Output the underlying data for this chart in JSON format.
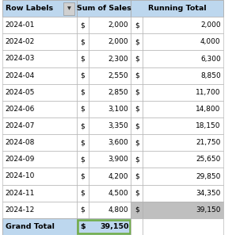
{
  "headers": [
    "Row Labels",
    "Sum of Sales",
    "Running Total"
  ],
  "rows": [
    [
      "2024-01",
      "$",
      "2,000",
      "$",
      "2,000"
    ],
    [
      "2024-02",
      "$",
      "2,000",
      "$",
      "4,000"
    ],
    [
      "2024-03",
      "$",
      "2,300",
      "$",
      "6,300"
    ],
    [
      "2024-04",
      "$",
      "2,550",
      "$",
      "8,850"
    ],
    [
      "2024-05",
      "$",
      "2,850",
      "$",
      "11,700"
    ],
    [
      "2024-06",
      "$",
      "3,100",
      "$",
      "14,800"
    ],
    [
      "2024-07",
      "$",
      "3,350",
      "$",
      "18,150"
    ],
    [
      "2024-08",
      "$",
      "3,600",
      "$",
      "21,750"
    ],
    [
      "2024-09",
      "$",
      "3,900",
      "$",
      "25,650"
    ],
    [
      "2024-10",
      "$",
      "4,200",
      "$",
      "29,850"
    ],
    [
      "2024-11",
      "$",
      "4,500",
      "$",
      "34,350"
    ],
    [
      "2024-12",
      "$",
      "4,800",
      "$",
      "39,150"
    ]
  ],
  "grand_total_label": "Grand Total",
  "grand_total_sales_dollar": "$",
  "grand_total_sales_value": "39,150",
  "header_bg": "#BDD7EE",
  "grand_total_bg": "#BDD7EE",
  "last_row_running_bg": "#BFBFBF",
  "row_bg_white": "#FFFFFF",
  "border_color": "#AAAAAA",
  "green_border": "#70AD47",
  "header_font_size": 6.8,
  "data_font_size": 6.5,
  "grand_total_font_size": 6.8,
  "figsize": [
    2.98,
    2.96
  ],
  "dpi": 100
}
